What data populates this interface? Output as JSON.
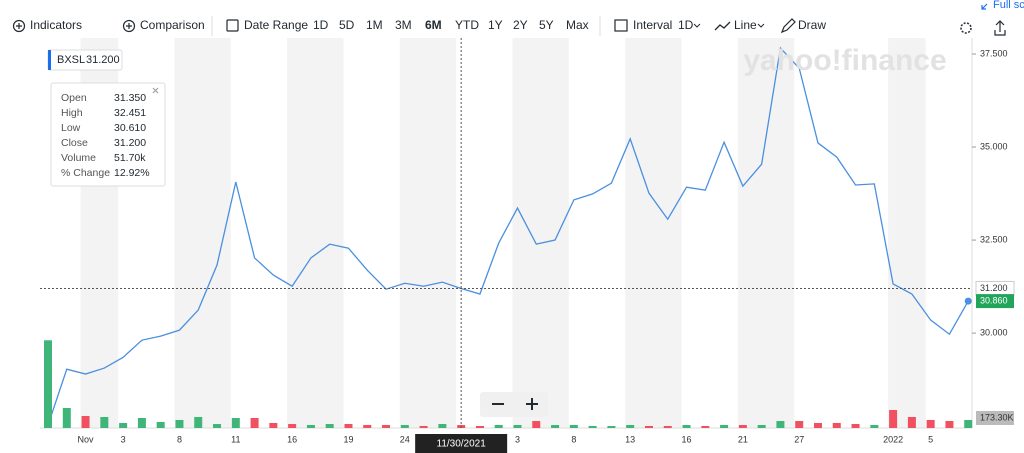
{
  "toolbar": {
    "indicators": "Indicators",
    "comparison": "Comparison",
    "date_range": "Date Range",
    "ranges": [
      "1D",
      "5D",
      "1M",
      "3M",
      "6M",
      "YTD",
      "1Y",
      "2Y",
      "5Y",
      "Max"
    ],
    "selected_range": "6M",
    "interval": "Interval",
    "interval_value": "1D",
    "chart_style": "Line",
    "draw": "Draw",
    "full_screen": "Full sc"
  },
  "chart_data": {
    "type": "line",
    "watermark": "yahoo!finance",
    "categories": [
      null,
      null,
      "Nov",
      null,
      "3",
      null,
      null,
      "8",
      null,
      null,
      "11",
      null,
      null,
      "16",
      null,
      null,
      "19",
      null,
      null,
      "24",
      null,
      null,
      null,
      null,
      null,
      "3",
      null,
      null,
      "8",
      null,
      null,
      "13",
      null,
      null,
      "16",
      null,
      null,
      "21",
      null,
      null,
      "27",
      null,
      null,
      null,
      null,
      "2022",
      null,
      "5",
      null,
      null
    ],
    "series": [
      {
        "name": "BXSL",
        "color": "#4a8fe0",
        "values": [
          27.53,
          29.03,
          28.9,
          29.06,
          29.35,
          29.81,
          29.92,
          30.08,
          30.62,
          31.83,
          34.06,
          32.02,
          31.56,
          31.26,
          32.02,
          32.39,
          32.28,
          31.69,
          31.18,
          31.34,
          31.26,
          31.37,
          31.2,
          31.05,
          32.42,
          33.36,
          32.39,
          32.5,
          33.58,
          33.74,
          34.03,
          35.22,
          33.76,
          33.06,
          33.92,
          33.84,
          35.13,
          33.95,
          34.54,
          37.66,
          37.12,
          35.11,
          34.73,
          33.98,
          34.01,
          31.32,
          31.05,
          30.35,
          29.97,
          30.86
        ]
      },
      {
        "name": "Volume",
        "axis": "y2",
        "values": [
          1520000,
          347000,
          208000,
          191000,
          87000,
          173000,
          104000,
          139000,
          191000,
          69000,
          173000,
          173000,
          87000,
          69000,
          52000,
          69000,
          69000,
          52000,
          52000,
          52000,
          35000,
          69000,
          51700,
          35000,
          52000,
          52000,
          121000,
          52000,
          52000,
          35000,
          35000,
          52000,
          35000,
          35000,
          52000,
          35000,
          52000,
          52000,
          52000,
          121000,
          121000,
          87000,
          87000,
          69000,
          52000,
          312000,
          191000,
          139000,
          121000,
          139000
        ],
        "colors": [
          "#3fb57a",
          "#3fb57a",
          "#f0505f",
          "#3fb57a",
          "#3fb57a",
          "#3fb57a",
          "#3fb57a",
          "#3fb57a",
          "#3fb57a",
          "#3fb57a",
          "#3fb57a",
          "#f0505f",
          "#f0505f",
          "#f0505f",
          "#3fb57a",
          "#3fb57a",
          "#f0505f",
          "#f0505f",
          "#f0505f",
          "#3fb57a",
          "#f0505f",
          "#3fb57a",
          "#f0505f",
          "#f0505f",
          "#3fb57a",
          "#3fb57a",
          "#f0505f",
          "#3fb57a",
          "#3fb57a",
          "#3fb57a",
          "#3fb57a",
          "#3fb57a",
          "#f0505f",
          "#f0505f",
          "#3fb57a",
          "#f0505f",
          "#3fb57a",
          "#f0505f",
          "#3fb57a",
          "#3fb57a",
          "#f0505f",
          "#f0505f",
          "#f0505f",
          "#f0505f",
          "#3fb57a",
          "#f0505f",
          "#f0505f",
          "#f0505f",
          "#f0505f",
          "#3fb57a"
        ]
      }
    ],
    "ylim": [
      27.45,
      37.93
    ],
    "yticks": [
      {
        "value": 30,
        "label": "30.000"
      },
      {
        "value": 32.5,
        "label": "32.500"
      },
      {
        "value": 35,
        "label": "35.000"
      },
      {
        "value": 37.5,
        "label": "37.500"
      }
    ],
    "y2lim": [
      0,
      1733000
    ],
    "y2ticks": [
      {
        "value": 173300,
        "label": "173.30K"
      }
    ],
    "crosshair": {
      "date": "11/30/2021",
      "price": {
        "value": 31.2,
        "label": "31.200"
      }
    },
    "last_price": {
      "value": 30.86,
      "label": "30.860"
    },
    "tooltip": {
      "symbol_price": "31.200",
      "rows": [
        [
          "Open",
          "31.350"
        ],
        [
          "High",
          "32.451"
        ],
        [
          "Low",
          "30.610"
        ],
        [
          "Close",
          "31.200"
        ],
        [
          "Volume",
          "51.70k"
        ],
        [
          "% Change",
          "12.92%"
        ]
      ]
    }
  }
}
